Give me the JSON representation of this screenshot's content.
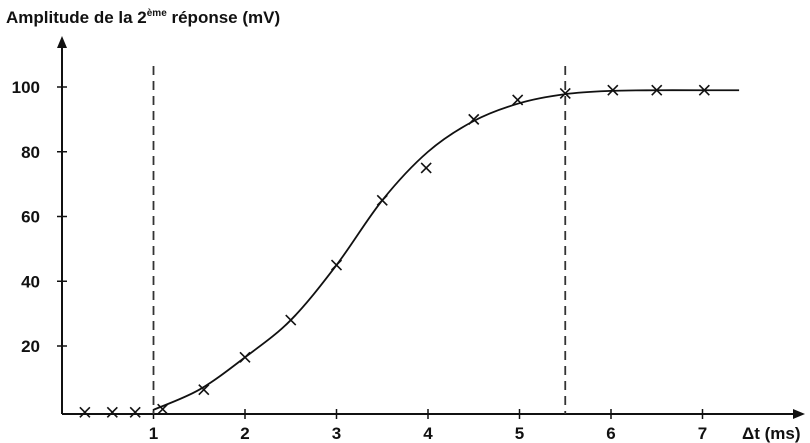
{
  "chart_data": {
    "type": "scatter",
    "title": "",
    "ylabel": {
      "pre": "Amplitude de la 2",
      "sup": "ème",
      "post": " réponse (mV)"
    },
    "xlabel": "Δt (ms)",
    "xlim": [
      0,
      7.4
    ],
    "ylim": [
      -2,
      108
    ],
    "xticks": [
      1,
      2,
      3,
      4,
      5,
      6,
      7
    ],
    "yticks": [
      20,
      40,
      60,
      80,
      100
    ],
    "series": [
      {
        "marker": "x",
        "x": [
          0.25,
          0.55,
          0.8,
          1.1,
          1.55,
          2.0,
          2.5,
          3.0,
          3.5,
          3.98,
          4.5,
          4.98,
          5.5,
          6.02,
          6.5,
          7.02
        ],
        "y": [
          -0.5,
          -0.5,
          -0.5,
          0.5,
          6.5,
          16.5,
          28,
          45,
          65,
          75,
          90,
          96,
          98,
          99,
          99,
          99
        ]
      }
    ],
    "fitted_curve": {
      "x": [
        1.0,
        1.5,
        2.0,
        2.5,
        3.0,
        3.5,
        4.0,
        4.5,
        5.0,
        5.5,
        6.0,
        6.5,
        7.0,
        7.4
      ],
      "y": [
        0.3,
        6.5,
        16.5,
        28,
        45,
        65,
        80,
        89.5,
        95,
        97.8,
        98.8,
        99.0,
        99.0,
        99.0
      ]
    },
    "vertical_dashed_lines": [
      1,
      5.5
    ],
    "color": "#111111"
  }
}
